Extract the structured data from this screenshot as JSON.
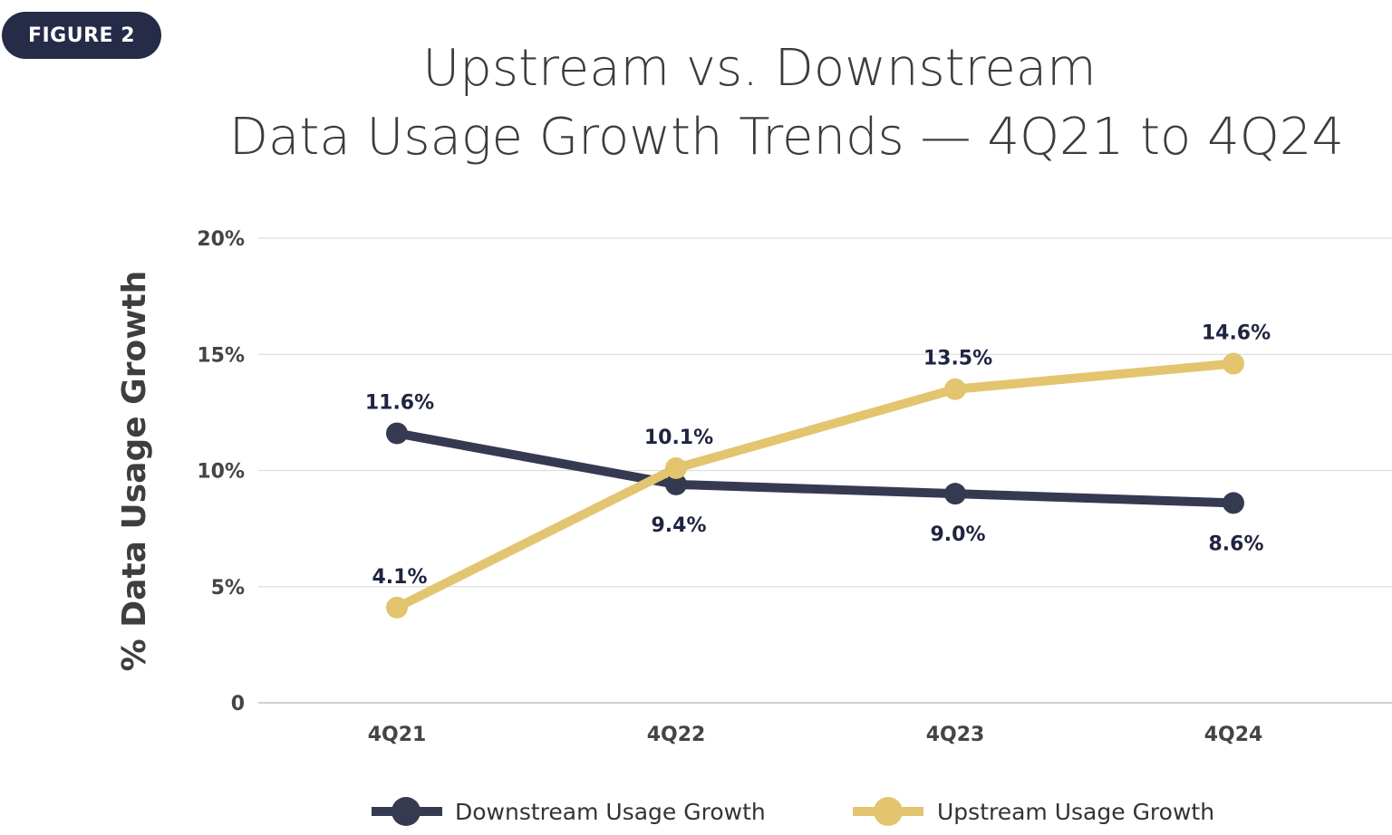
{
  "figure_badge": "FIGURE 2",
  "colors": {
    "badge": "#262b47",
    "downstream": "#353a51",
    "upstream": "#e3c46f",
    "grid": "#dddddd"
  },
  "chart_data": {
    "type": "line",
    "title_line1": "Upstream vs. Downstream",
    "title_line2": "Data Usage Growth Trends — 4Q21 to 4Q24",
    "ylabel": "% Data Usage Growth",
    "xlabel": "",
    "categories": [
      "4Q21",
      "4Q22",
      "4Q23",
      "4Q24"
    ],
    "ylim": [
      0,
      20
    ],
    "yticks": [
      0,
      5,
      10,
      15,
      20
    ],
    "ytick_labels": [
      "0",
      "5%",
      "10%",
      "15%",
      "20%"
    ],
    "grid": true,
    "legend_position": "bottom",
    "series": [
      {
        "name": "Downstream Usage Growth",
        "values": [
          11.6,
          9.4,
          9.0,
          8.6
        ],
        "labels": [
          "11.6%",
          "9.4%",
          "9.0%",
          "8.6%"
        ]
      },
      {
        "name": "Upstream Usage Growth",
        "values": [
          4.1,
          10.1,
          13.5,
          14.6
        ],
        "labels": [
          "4.1%",
          "10.1%",
          "13.5%",
          "14.6%"
        ]
      }
    ]
  }
}
